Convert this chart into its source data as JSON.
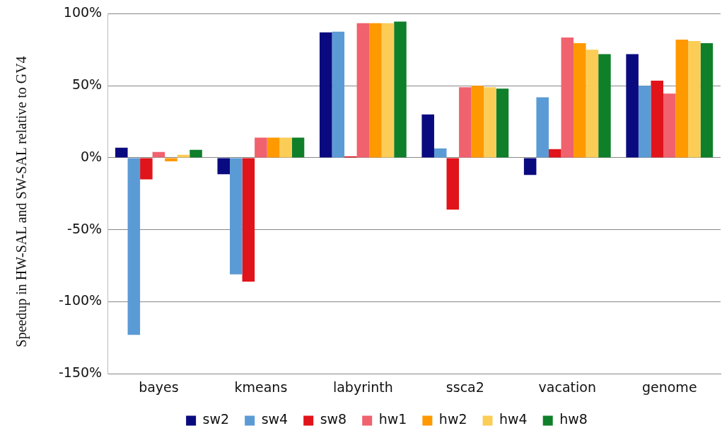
{
  "chart_data": {
    "type": "bar",
    "ylabel": "Speedup in HW-SAL and SW-SAL relative to GV4",
    "categories": [
      "bayes",
      "kmeans",
      "labyrinth",
      "ssca2",
      "vacation",
      "genome"
    ],
    "series": [
      {
        "name": "sw2",
        "color": "#0a0a80",
        "values": [
          7,
          -11.5,
          87,
          30,
          -12,
          72
        ]
      },
      {
        "name": "sw4",
        "color": "#5b9bd5",
        "values": [
          -123,
          -81,
          87.5,
          6.5,
          42,
          50
        ]
      },
      {
        "name": "sw8",
        "color": "#e0141a",
        "values": [
          -15,
          -86,
          1,
          -36,
          6,
          53.5
        ]
      },
      {
        "name": "hw1",
        "color": "#f0626e",
        "values": [
          4,
          14,
          93.5,
          49,
          83.5,
          44.5
        ]
      },
      {
        "name": "hw2",
        "color": "#ff9900",
        "values": [
          -2.5,
          14,
          93.5,
          50,
          79.5,
          82
        ]
      },
      {
        "name": "hw4",
        "color": "#fbcd57",
        "values": [
          2,
          14,
          93.5,
          49,
          75,
          81
        ]
      },
      {
        "name": "hw8",
        "color": "#0f7f2a",
        "values": [
          5.5,
          14,
          94.5,
          48,
          72,
          79.5
        ]
      }
    ],
    "ylim": [
      -150,
      100
    ],
    "yticks": [
      {
        "value": -150,
        "label": "-150%"
      },
      {
        "value": -100,
        "label": "-100%"
      },
      {
        "value": -50,
        "label": "-50%"
      },
      {
        "value": 0,
        "label": "0%"
      },
      {
        "value": 50,
        "label": "50%"
      },
      {
        "value": 100,
        "label": "100%"
      }
    ],
    "grid": "y",
    "legend": "bottom"
  }
}
